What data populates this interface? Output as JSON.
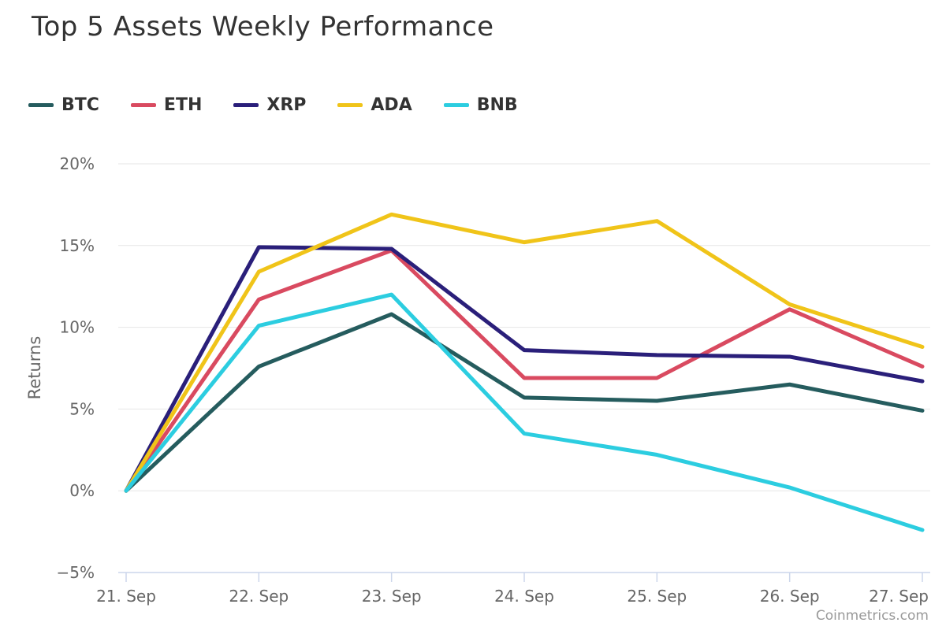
{
  "chart_data": {
    "type": "line",
    "title": "Top 5 Assets Weekly Performance",
    "xlabel": "",
    "ylabel": "Returns",
    "categories": [
      "21. Sep",
      "22. Sep",
      "23. Sep",
      "24. Sep",
      "25. Sep",
      "26. Sep",
      "27. Sep"
    ],
    "ylim": [
      -5,
      20
    ],
    "yticks": [
      -5,
      0,
      5,
      10,
      15,
      20
    ],
    "ytick_labels": [
      "−5%",
      "0%",
      "5%",
      "10%",
      "15%",
      "20%"
    ],
    "grid": true,
    "legend_position": "top-left",
    "series": [
      {
        "name": "BTC",
        "color": "#255c5e",
        "values": [
          0,
          7.6,
          10.8,
          5.7,
          5.5,
          6.5,
          4.9
        ]
      },
      {
        "name": "ETH",
        "color": "#d94a60",
        "values": [
          0,
          11.7,
          14.7,
          6.9,
          6.9,
          11.1,
          7.6
        ]
      },
      {
        "name": "XRP",
        "color": "#2a1f7a",
        "values": [
          0,
          14.9,
          14.8,
          8.6,
          8.3,
          8.2,
          6.7
        ]
      },
      {
        "name": "ADA",
        "color": "#f0c419",
        "values": [
          0,
          13.4,
          16.9,
          15.2,
          16.5,
          11.4,
          8.8
        ]
      },
      {
        "name": "BNB",
        "color": "#2ccde0",
        "values": [
          0,
          10.1,
          12.0,
          3.5,
          2.2,
          0.2,
          -2.4
        ]
      }
    ],
    "credit": "Coinmetrics.com"
  }
}
